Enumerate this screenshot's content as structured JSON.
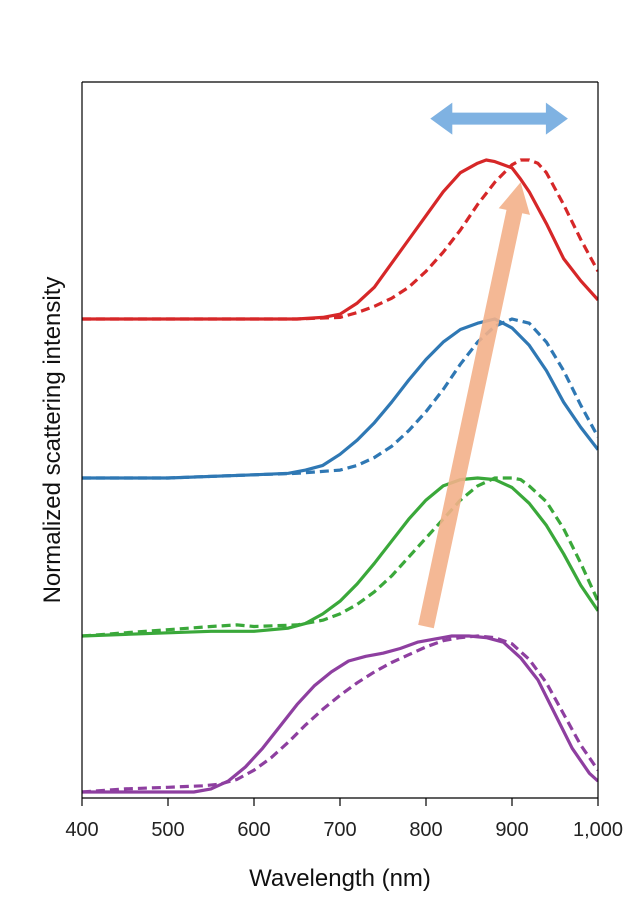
{
  "chart_data": {
    "type": "line",
    "xlabel": "Wavelength (nm)",
    "ylabel": "Normalized scattering intensity",
    "xlim": [
      400,
      1000
    ],
    "x_ticks": [
      400,
      500,
      600,
      700,
      800,
      900,
      1000
    ],
    "x_tick_labels": [
      "400",
      "500",
      "600",
      "700",
      "800",
      "900",
      "1,000"
    ],
    "y_ticks_shown": false,
    "grid": false,
    "legend": "none",
    "note": "",
    "series": [
      {
        "group": 0,
        "color": "#d62728",
        "style": "solid",
        "x": [
          400,
          500,
          600,
          650,
          680,
          700,
          720,
          740,
          760,
          780,
          800,
          820,
          840,
          860,
          870,
          880,
          890,
          900,
          910,
          920,
          940,
          960,
          980,
          1000
        ],
        "y": [
          3.0,
          3.0,
          3.0,
          3.0,
          3.01,
          3.03,
          3.1,
          3.2,
          3.35,
          3.5,
          3.65,
          3.8,
          3.92,
          3.98,
          4.0,
          3.99,
          3.97,
          3.95,
          3.88,
          3.8,
          3.6,
          3.38,
          3.24,
          3.12
        ]
      },
      {
        "group": 0,
        "color": "#d62728",
        "style": "dashed",
        "x": [
          400,
          500,
          600,
          650,
          700,
          720,
          740,
          760,
          780,
          800,
          820,
          840,
          860,
          880,
          900,
          910,
          920,
          930,
          940,
          960,
          980,
          1000
        ],
        "y": [
          3.0,
          3.0,
          3.0,
          3.0,
          3.01,
          3.04,
          3.08,
          3.13,
          3.2,
          3.3,
          3.42,
          3.56,
          3.72,
          3.86,
          3.97,
          4.0,
          4.0,
          3.98,
          3.92,
          3.72,
          3.5,
          3.3
        ]
      },
      {
        "group": 1,
        "color": "#2f78b4",
        "style": "solid",
        "x": [
          400,
          500,
          600,
          640,
          660,
          680,
          700,
          720,
          740,
          760,
          780,
          800,
          820,
          840,
          860,
          880,
          900,
          920,
          940,
          960,
          980,
          1000
        ],
        "y": [
          2.0,
          2.0,
          2.02,
          2.03,
          2.05,
          2.08,
          2.15,
          2.24,
          2.35,
          2.48,
          2.62,
          2.75,
          2.86,
          2.94,
          2.98,
          3.0,
          2.95,
          2.84,
          2.68,
          2.48,
          2.32,
          2.18
        ]
      },
      {
        "group": 1,
        "color": "#2f78b4",
        "style": "dashed",
        "x": [
          400,
          500,
          600,
          650,
          700,
          720,
          740,
          760,
          780,
          800,
          820,
          840,
          860,
          880,
          900,
          920,
          940,
          960,
          980,
          1000
        ],
        "y": [
          2.0,
          2.0,
          2.02,
          2.03,
          2.05,
          2.08,
          2.13,
          2.2,
          2.3,
          2.42,
          2.56,
          2.72,
          2.86,
          2.96,
          3.0,
          2.98,
          2.86,
          2.68,
          2.46,
          2.26
        ]
      },
      {
        "group": 2,
        "color": "#3aa83a",
        "style": "solid",
        "x": [
          400,
          450,
          500,
          550,
          600,
          640,
          660,
          680,
          700,
          720,
          740,
          760,
          780,
          800,
          820,
          840,
          860,
          880,
          900,
          920,
          940,
          960,
          980,
          1000
        ],
        "y": [
          1.0,
          1.01,
          1.02,
          1.03,
          1.03,
          1.05,
          1.08,
          1.14,
          1.22,
          1.33,
          1.46,
          1.6,
          1.74,
          1.86,
          1.95,
          1.99,
          2.0,
          1.99,
          1.94,
          1.84,
          1.7,
          1.52,
          1.32,
          1.16
        ]
      },
      {
        "group": 2,
        "color": "#3aa83a",
        "style": "dashed",
        "x": [
          400,
          450,
          500,
          550,
          580,
          600,
          650,
          680,
          700,
          720,
          740,
          760,
          780,
          800,
          820,
          840,
          860,
          880,
          900,
          910,
          920,
          940,
          960,
          980,
          1000
        ],
        "y": [
          1.0,
          1.02,
          1.04,
          1.06,
          1.07,
          1.06,
          1.07,
          1.1,
          1.14,
          1.2,
          1.28,
          1.38,
          1.5,
          1.62,
          1.74,
          1.86,
          1.95,
          2.0,
          2.0,
          1.99,
          1.95,
          1.85,
          1.68,
          1.46,
          1.22
        ]
      },
      {
        "group": 3,
        "color": "#8e3fa0",
        "style": "solid",
        "x": [
          400,
          450,
          500,
          530,
          550,
          570,
          590,
          610,
          630,
          650,
          670,
          690,
          710,
          730,
          750,
          770,
          790,
          810,
          830,
          850,
          870,
          890,
          910,
          930,
          950,
          970,
          990,
          1000
        ],
        "y": [
          0.0,
          0.0,
          0.0,
          0.0,
          0.02,
          0.07,
          0.16,
          0.28,
          0.42,
          0.56,
          0.68,
          0.77,
          0.84,
          0.87,
          0.89,
          0.92,
          0.96,
          0.98,
          1.0,
          1.0,
          0.99,
          0.96,
          0.86,
          0.72,
          0.5,
          0.28,
          0.12,
          0.07
        ]
      },
      {
        "group": 3,
        "color": "#8e3fa0",
        "style": "dashed",
        "x": [
          400,
          450,
          500,
          540,
          560,
          580,
          600,
          620,
          640,
          660,
          680,
          700,
          720,
          740,
          760,
          780,
          800,
          820,
          840,
          860,
          880,
          900,
          920,
          940,
          960,
          980,
          1000
        ],
        "y": [
          0.0,
          0.02,
          0.03,
          0.04,
          0.05,
          0.08,
          0.14,
          0.22,
          0.32,
          0.43,
          0.53,
          0.62,
          0.7,
          0.77,
          0.83,
          0.88,
          0.93,
          0.97,
          0.99,
          1.0,
          0.99,
          0.95,
          0.85,
          0.7,
          0.5,
          0.3,
          0.14
        ]
      }
    ],
    "annotations": [
      {
        "type": "double-arrow",
        "color": "#7fb2e2",
        "x_from": 805,
        "x_to": 965,
        "y": 4.26
      },
      {
        "type": "arrow",
        "color": "#f3b08a",
        "from": [
          800,
          1.06
        ],
        "to": [
          910,
          3.86
        ]
      }
    ]
  }
}
